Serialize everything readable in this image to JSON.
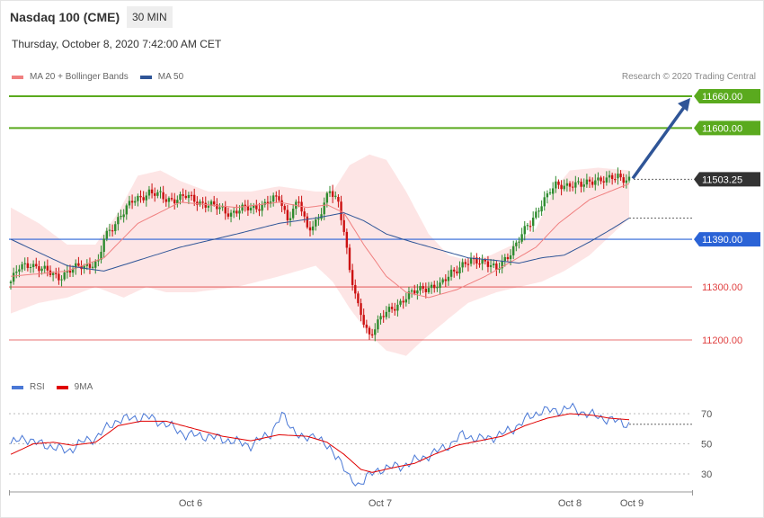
{
  "header": {
    "title": "Nasdaq 100 (CME)",
    "timeframe": "30 MIN",
    "datetime": "Thursday, October 8, 2020 7:42:00 AM CET",
    "credit": "Research © 2020 Trading Central"
  },
  "legend": {
    "ma20_label": "MA 20 + Bollinger Bands",
    "ma50_label": "MA 50",
    "ma20_color": "#f08080",
    "ma50_color": "#2f5597"
  },
  "rsi_legend": {
    "rsi_label": "RSI",
    "ma9_label": "9MA",
    "rsi_color": "#4a78d6",
    "ma9_color": "#e00000"
  },
  "colors": {
    "bull": "#2e8b2e",
    "bear": "#cc1111",
    "band": "#fde0e0",
    "resistance": "#5aaa1e",
    "current": "#333333",
    "pivot": "#2b63d6",
    "support": "#e04040",
    "arrow": "#2f5597"
  },
  "chart_data": [
    {
      "type": "candlestick",
      "ylim": [
        11190,
        11680
      ],
      "x_labels": [
        "Oct 6",
        "Oct 7",
        "Oct 8",
        "Oct 9"
      ],
      "levels": [
        {
          "label": "11660.00",
          "value": 11660,
          "role": "resistance"
        },
        {
          "label": "11600.00",
          "value": 11600,
          "role": "resistance"
        },
        {
          "label": "11503.25",
          "value": 11503.25,
          "role": "current"
        },
        {
          "label": "11390.00",
          "value": 11390,
          "role": "pivot"
        },
        {
          "label": "11300.00",
          "value": 11300,
          "role": "support"
        },
        {
          "label": "11200.00",
          "value": 11200,
          "role": "support"
        }
      ],
      "projection_target": 11660,
      "waypoints": [
        [
          0,
          11310
        ],
        [
          3,
          11335
        ],
        [
          7,
          11345
        ],
        [
          12,
          11330
        ],
        [
          17,
          11320
        ],
        [
          21,
          11330
        ],
        [
          25,
          11340
        ],
        [
          31,
          11345
        ],
        [
          33,
          11390
        ],
        [
          38,
          11430
        ],
        [
          43,
          11460
        ],
        [
          49,
          11480
        ],
        [
          55,
          11465
        ],
        [
          62,
          11470
        ],
        [
          70,
          11455
        ],
        [
          78,
          11440
        ],
        [
          85,
          11450
        ],
        [
          90,
          11455
        ],
        [
          95,
          11470
        ],
        [
          98,
          11430
        ],
        [
          102,
          11460
        ],
        [
          105,
          11410
        ],
        [
          109,
          11430
        ],
        [
          113,
          11480
        ],
        [
          116,
          11460
        ],
        [
          118,
          11410
        ],
        [
          120,
          11330
        ],
        [
          123,
          11260
        ],
        [
          127,
          11210
        ],
        [
          131,
          11240
        ],
        [
          135,
          11260
        ],
        [
          140,
          11280
        ],
        [
          146,
          11300
        ],
        [
          152,
          11300
        ],
        [
          156,
          11330
        ],
        [
          160,
          11340
        ],
        [
          164,
          11350
        ],
        [
          168,
          11350
        ],
        [
          172,
          11330
        ],
        [
          176,
          11360
        ],
        [
          180,
          11390
        ],
        [
          184,
          11420
        ],
        [
          188,
          11460
        ],
        [
          193,
          11490
        ],
        [
          198,
          11495
        ],
        [
          202,
          11490
        ],
        [
          207,
          11505
        ],
        [
          211,
          11500
        ],
        [
          215,
          11510
        ],
        [
          219,
          11503
        ]
      ],
      "ma20": [
        [
          0,
          11320
        ],
        [
          20,
          11330
        ],
        [
          33,
          11355
        ],
        [
          45,
          11420
        ],
        [
          60,
          11460
        ],
        [
          80,
          11450
        ],
        [
          95,
          11460
        ],
        [
          105,
          11450
        ],
        [
          112,
          11455
        ],
        [
          118,
          11440
        ],
        [
          125,
          11380
        ],
        [
          133,
          11320
        ],
        [
          140,
          11290
        ],
        [
          148,
          11280
        ],
        [
          158,
          11295
        ],
        [
          168,
          11320
        ],
        [
          178,
          11350
        ],
        [
          186,
          11375
        ],
        [
          194,
          11420
        ],
        [
          205,
          11465
        ],
        [
          219,
          11495
        ]
      ],
      "band_upper": [
        [
          0,
          11450
        ],
        [
          10,
          11420
        ],
        [
          20,
          11380
        ],
        [
          30,
          11380
        ],
        [
          38,
          11440
        ],
        [
          45,
          11510
        ],
        [
          53,
          11520
        ],
        [
          60,
          11500
        ],
        [
          70,
          11480
        ],
        [
          85,
          11480
        ],
        [
          95,
          11490
        ],
        [
          108,
          11480
        ],
        [
          114,
          11480
        ],
        [
          120,
          11530
        ],
        [
          127,
          11550
        ],
        [
          133,
          11540
        ],
        [
          140,
          11480
        ],
        [
          148,
          11400
        ],
        [
          155,
          11360
        ],
        [
          162,
          11350
        ],
        [
          170,
          11360
        ],
        [
          178,
          11380
        ],
        [
          186,
          11410
        ],
        [
          192,
          11480
        ],
        [
          198,
          11520
        ],
        [
          208,
          11525
        ],
        [
          219,
          11520
        ]
      ],
      "band_lower": [
        [
          0,
          11250
        ],
        [
          10,
          11270
        ],
        [
          20,
          11280
        ],
        [
          30,
          11300
        ],
        [
          40,
          11280
        ],
        [
          48,
          11300
        ],
        [
          55,
          11290
        ],
        [
          65,
          11290
        ],
        [
          80,
          11300
        ],
        [
          95,
          11320
        ],
        [
          108,
          11340
        ],
        [
          114,
          11310
        ],
        [
          120,
          11260
        ],
        [
          127,
          11210
        ],
        [
          133,
          11180
        ],
        [
          140,
          11170
        ],
        [
          146,
          11200
        ],
        [
          155,
          11240
        ],
        [
          162,
          11270
        ],
        [
          172,
          11290
        ],
        [
          180,
          11300
        ],
        [
          188,
          11310
        ],
        [
          196,
          11330
        ],
        [
          205,
          11360
        ],
        [
          213,
          11400
        ],
        [
          219,
          11430
        ]
      ],
      "ma50": [
        [
          0,
          11390
        ],
        [
          20,
          11340
        ],
        [
          33,
          11330
        ],
        [
          45,
          11350
        ],
        [
          60,
          11375
        ],
        [
          80,
          11400
        ],
        [
          95,
          11420
        ],
        [
          108,
          11430
        ],
        [
          118,
          11440
        ],
        [
          125,
          11425
        ],
        [
          133,
          11400
        ],
        [
          142,
          11385
        ],
        [
          152,
          11370
        ],
        [
          162,
          11355
        ],
        [
          172,
          11350
        ],
        [
          180,
          11345
        ],
        [
          188,
          11355
        ],
        [
          196,
          11360
        ],
        [
          205,
          11385
        ],
        [
          213,
          11410
        ],
        [
          219,
          11430
        ]
      ]
    },
    {
      "type": "line",
      "series": [
        {
          "name": "RSI"
        },
        {
          "name": "9MA"
        }
      ],
      "ylim": [
        15,
        85
      ],
      "y_ticks": [
        70,
        50,
        30
      ],
      "rsi": [
        [
          0,
          50
        ],
        [
          5,
          54
        ],
        [
          10,
          50
        ],
        [
          15,
          48
        ],
        [
          20,
          45
        ],
        [
          25,
          51
        ],
        [
          30,
          54
        ],
        [
          33,
          59
        ],
        [
          38,
          66
        ],
        [
          43,
          67
        ],
        [
          48,
          68
        ],
        [
          55,
          63
        ],
        [
          62,
          56
        ],
        [
          70,
          55
        ],
        [
          78,
          52
        ],
        [
          85,
          49
        ],
        [
          92,
          57
        ],
        [
          96,
          69
        ],
        [
          100,
          60
        ],
        [
          104,
          52
        ],
        [
          108,
          57
        ],
        [
          112,
          47
        ],
        [
          116,
          42
        ],
        [
          120,
          26
        ],
        [
          123,
          23
        ],
        [
          126,
          28
        ],
        [
          132,
          34
        ],
        [
          138,
          35
        ],
        [
          145,
          40
        ],
        [
          150,
          44
        ],
        [
          156,
          50
        ],
        [
          160,
          56
        ],
        [
          166,
          53
        ],
        [
          172,
          55
        ],
        [
          178,
          60
        ],
        [
          183,
          67
        ],
        [
          188,
          72
        ],
        [
          194,
          72
        ],
        [
          198,
          74
        ],
        [
          204,
          70
        ],
        [
          210,
          67
        ],
        [
          219,
          63
        ]
      ],
      "ma9": [
        [
          0,
          43
        ],
        [
          8,
          50
        ],
        [
          15,
          51
        ],
        [
          22,
          49
        ],
        [
          30,
          51
        ],
        [
          38,
          62
        ],
        [
          46,
          65
        ],
        [
          55,
          65
        ],
        [
          65,
          60
        ],
        [
          75,
          55
        ],
        [
          85,
          52
        ],
        [
          95,
          56
        ],
        [
          105,
          55
        ],
        [
          112,
          51
        ],
        [
          118,
          43
        ],
        [
          124,
          33
        ],
        [
          128,
          31
        ],
        [
          135,
          34
        ],
        [
          143,
          37
        ],
        [
          150,
          43
        ],
        [
          158,
          49
        ],
        [
          166,
          52
        ],
        [
          174,
          55
        ],
        [
          182,
          62
        ],
        [
          190,
          67
        ],
        [
          198,
          70
        ],
        [
          206,
          69
        ],
        [
          212,
          67
        ],
        [
          219,
          66
        ]
      ]
    }
  ]
}
